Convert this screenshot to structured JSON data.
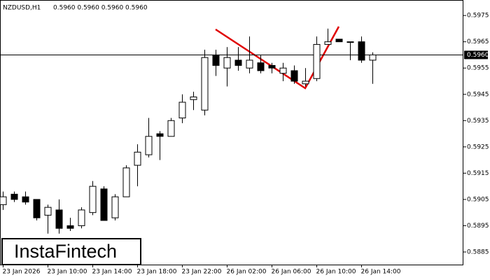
{
  "chart_data": {
    "type": "candlestick",
    "header": {
      "symbol": "NZDUSD,H1",
      "ohlc": "0.5960 0.5960 0.5960 0.5960"
    },
    "logo": "InstaFintech",
    "categories": [
      "23 Jan 2026",
      null,
      null,
      null,
      "23 Jan 10:00",
      null,
      null,
      null,
      "23 Jan 14:00",
      null,
      null,
      null,
      "23 Jan 18:00",
      null,
      null,
      null,
      "23 Jan 22:00",
      null,
      null,
      null,
      "26 Jan 02:00",
      null,
      null,
      null,
      "26 Jan 06:00",
      null,
      null,
      null,
      "26 Jan 10:00",
      null,
      null,
      null,
      "26 Jan 14:00",
      null
    ],
    "open": [
      0.5903,
      0.5907,
      0.5906,
      0.5905,
      0.5899,
      0.5901,
      0.5895,
      0.5895,
      0.59,
      0.5909,
      0.5898,
      0.5906,
      0.5918,
      0.5922,
      0.593,
      0.5929,
      0.5936,
      0.5943,
      0.5939,
      0.596,
      0.5955,
      0.5958,
      0.5955,
      0.5957,
      0.5956,
      0.5953,
      0.5954,
      0.5949,
      0.5951,
      0.5964,
      0.5966,
      0.5965,
      0.5965,
      0.5958
    ],
    "high": [
      0.5908,
      0.5908,
      0.5908,
      0.5905,
      0.5903,
      0.5905,
      0.5898,
      0.5902,
      0.5912,
      0.591,
      0.5907,
      0.5918,
      0.5926,
      0.5936,
      0.5931,
      0.5936,
      0.5945,
      0.5946,
      0.5962,
      0.5962,
      0.5963,
      0.5963,
      0.5967,
      0.596,
      0.5957,
      0.5957,
      0.5956,
      0.5955,
      0.5967,
      0.597,
      0.5966,
      0.5965,
      0.5967,
      0.5961
    ],
    "low": [
      0.5901,
      0.5904,
      0.5903,
      0.5897,
      0.5892,
      0.5892,
      0.5893,
      0.5894,
      0.5899,
      0.5897,
      0.5897,
      0.5906,
      0.591,
      0.5921,
      0.592,
      0.5929,
      0.5934,
      0.5939,
      0.5937,
      0.5952,
      0.5948,
      0.5954,
      0.5953,
      0.5953,
      0.5953,
      0.595,
      0.5949,
      0.5948,
      0.595,
      0.5964,
      0.5965,
      0.5958,
      0.5957,
      0.5949
    ],
    "close": [
      0.5906,
      0.5905,
      0.5904,
      0.5898,
      0.5902,
      0.5894,
      0.5894,
      0.5901,
      0.591,
      0.5897,
      0.5906,
      0.5917,
      0.5923,
      0.5929,
      0.5929,
      0.5935,
      0.5942,
      0.5944,
      0.5959,
      0.5956,
      0.5959,
      0.5956,
      0.5958,
      0.5954,
      0.5955,
      0.5955,
      0.595,
      0.595,
      0.5964,
      0.5965,
      0.5965,
      0.5965,
      0.5958,
      0.596
    ],
    "up_color": "#ffffff",
    "down_color": "#000000",
    "ylim": [
      0.58802,
      0.59809
    ],
    "yticks": [
      0.5975,
      0.5965,
      0.5955,
      0.5945,
      0.5935,
      0.5925,
      0.5915,
      0.5905,
      0.5895,
      0.5885
    ],
    "last_price": {
      "value": 0.596,
      "label": "0.5960"
    }
  }
}
